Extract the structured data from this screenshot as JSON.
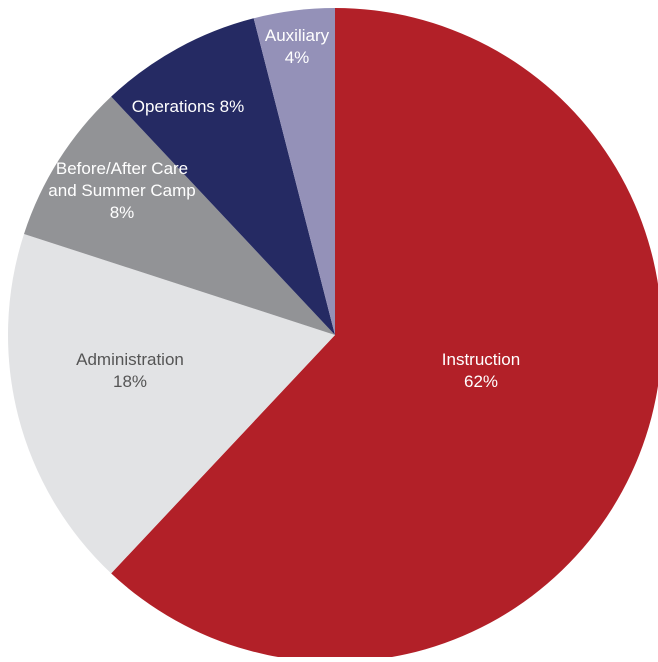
{
  "chart_data": {
    "type": "pie",
    "title": "",
    "slices": [
      {
        "label_lines": [
          "Instruction",
          "62%"
        ],
        "value": 62,
        "color": "#b22028",
        "label_color": "#ffffff"
      },
      {
        "label_lines": [
          "Administration",
          "18%"
        ],
        "value": 18,
        "color": "#e2e3e5",
        "label_color": "#555555"
      },
      {
        "label_lines": [
          "Before/After Care",
          "and Summer Camp",
          "8%"
        ],
        "value": 8,
        "color": "#929396",
        "label_color": "#ffffff"
      },
      {
        "label_lines": [
          "Operations 8%"
        ],
        "value": 8,
        "color": "#252a63",
        "label_color": "#ffffff"
      },
      {
        "label_lines": [
          "Auxiliary",
          "4%"
        ],
        "value": 4,
        "color": "#9491b8",
        "label_color": "#ffffff"
      }
    ],
    "start": "12 o'clock",
    "direction": "clockwise",
    "legend": "none"
  }
}
